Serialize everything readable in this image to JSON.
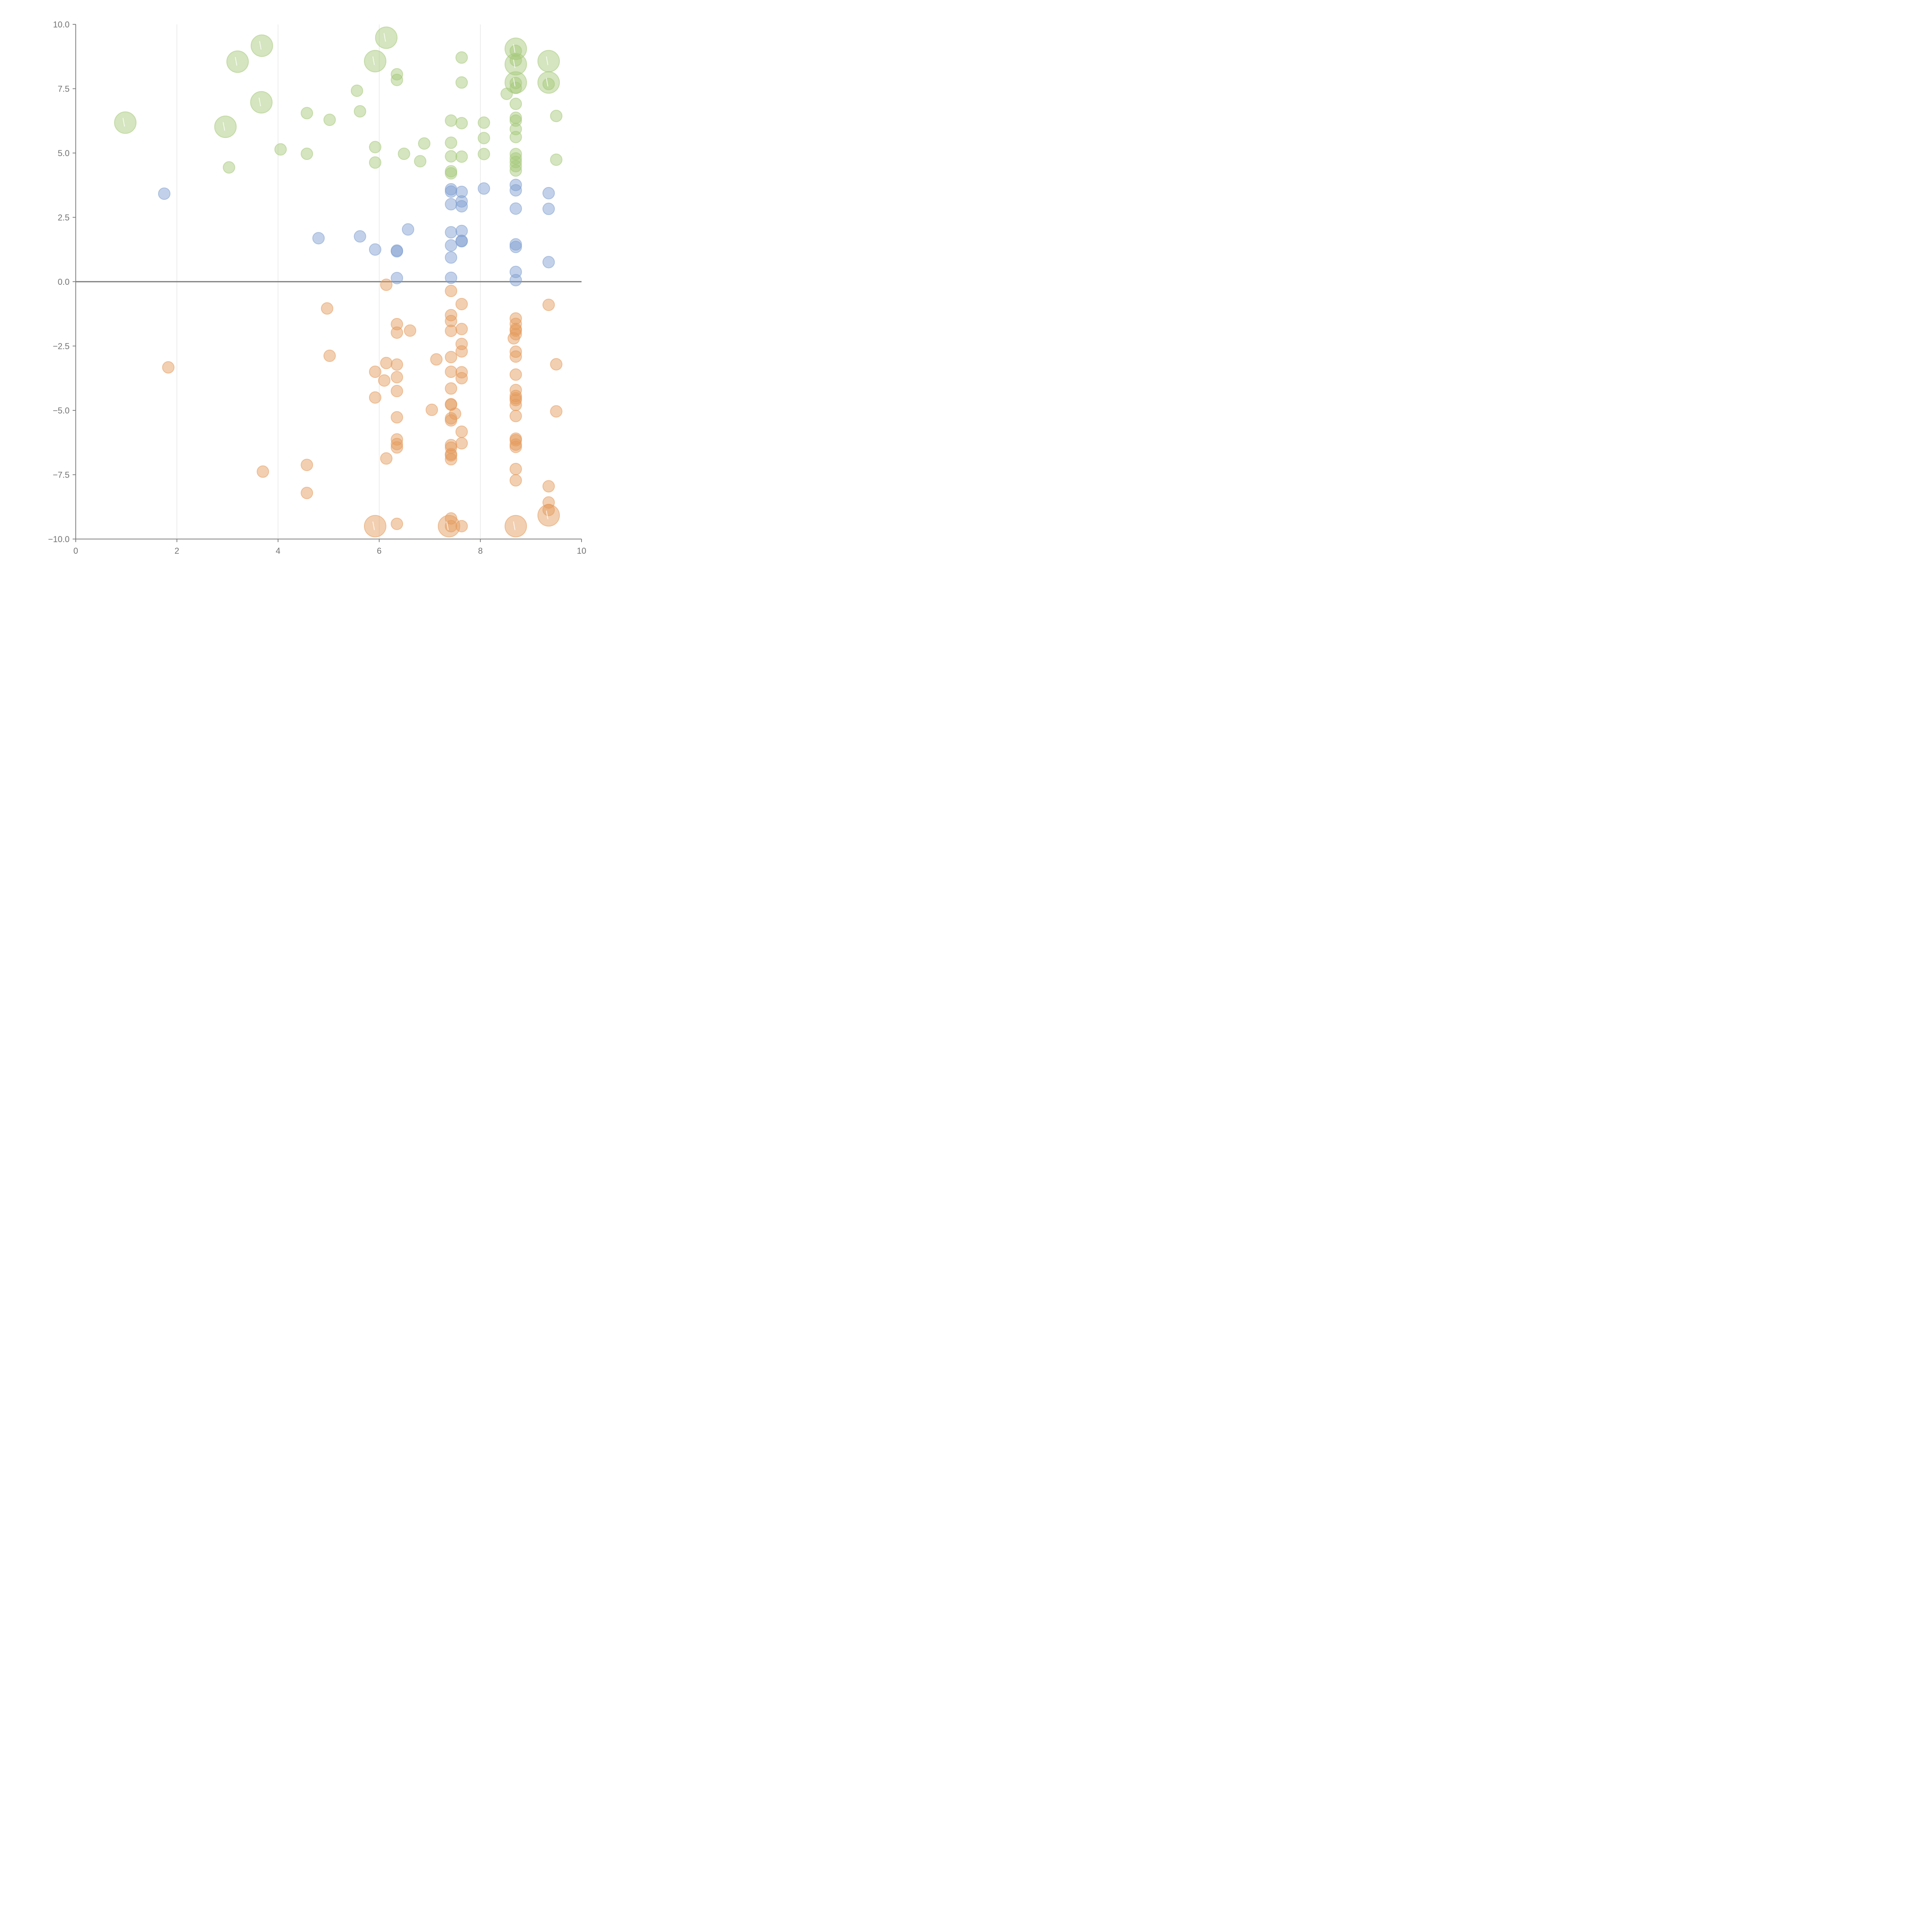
{
  "chart_data": {
    "type": "scatter",
    "title": "",
    "xlabel": "",
    "ylabel": "",
    "xlim": [
      0,
      10
    ],
    "ylim": [
      -10,
      10
    ],
    "x_ticks": [
      "0",
      "2",
      "4",
      "6",
      "8",
      "10"
    ],
    "y_ticks": [
      "−10.0",
      "−7.5",
      "−5.0",
      "−2.5",
      "0.0",
      "2.5",
      "5.0",
      "7.5",
      "10.0"
    ],
    "grid": "vertical only",
    "reference_line_y": 0,
    "colors": {
      "green": "#a6c97a",
      "blue": "#7f9fd0",
      "orange": "#e39a5c"
    },
    "series": [
      {
        "color_key": "green",
        "points": [
          [
            3.68,
            9.17,
            2
          ],
          [
            3.2,
            8.55,
            2
          ],
          [
            3.67,
            6.97,
            2
          ],
          [
            0.98,
            6.18,
            2
          ],
          [
            2.96,
            6.02,
            2
          ],
          [
            6.14,
            9.48,
            2
          ],
          [
            5.92,
            8.57,
            2
          ],
          [
            8.7,
            9.05,
            2
          ],
          [
            8.7,
            8.45,
            2
          ],
          [
            8.7,
            7.74,
            2
          ],
          [
            9.35,
            8.57,
            2
          ],
          [
            9.35,
            7.74,
            2
          ],
          [
            6.35,
            8.06,
            1
          ],
          [
            6.35,
            7.84,
            1
          ],
          [
            7.63,
            8.71,
            1
          ],
          [
            7.63,
            7.74,
            1
          ],
          [
            8.7,
            8.97,
            1
          ],
          [
            8.7,
            8.6,
            1
          ],
          [
            8.7,
            7.72,
            1
          ],
          [
            8.7,
            7.53,
            1
          ],
          [
            8.52,
            7.3,
            1
          ],
          [
            9.35,
            7.68,
            1
          ],
          [
            5.56,
            7.42,
            1
          ],
          [
            4.57,
            6.55,
            1
          ],
          [
            5.02,
            6.29,
            1
          ],
          [
            5.62,
            6.62,
            1
          ],
          [
            7.42,
            6.26,
            1
          ],
          [
            7.63,
            6.16,
            1
          ],
          [
            8.07,
            6.18,
            1
          ],
          [
            8.7,
            6.91,
            1
          ],
          [
            8.7,
            6.37,
            1
          ],
          [
            8.7,
            6.26,
            1
          ],
          [
            8.7,
            5.93,
            1
          ],
          [
            8.7,
            5.62,
            1
          ],
          [
            9.5,
            6.44,
            1
          ],
          [
            4.05,
            5.14,
            1
          ],
          [
            4.57,
            4.97,
            1
          ],
          [
            5.92,
            5.23,
            1
          ],
          [
            5.92,
            4.63,
            1
          ],
          [
            6.49,
            4.97,
            1
          ],
          [
            6.81,
            4.68,
            1
          ],
          [
            6.89,
            5.37,
            1
          ],
          [
            7.42,
            5.4,
            1
          ],
          [
            7.42,
            4.87,
            1
          ],
          [
            7.42,
            4.29,
            1
          ],
          [
            7.42,
            4.21,
            1
          ],
          [
            7.63,
            4.86,
            1
          ],
          [
            8.07,
            5.58,
            1
          ],
          [
            8.07,
            4.96,
            1
          ],
          [
            8.7,
            4.96,
            1
          ],
          [
            8.7,
            4.79,
            1
          ],
          [
            8.7,
            4.65,
            1
          ],
          [
            8.7,
            4.49,
            1
          ],
          [
            8.7,
            4.32,
            1
          ],
          [
            9.5,
            4.74,
            1
          ],
          [
            3.03,
            4.44,
            1
          ]
        ]
      },
      {
        "color_key": "blue",
        "points": [
          [
            1.75,
            3.42,
            1
          ],
          [
            4.8,
            1.69,
            1
          ],
          [
            5.62,
            1.76,
            1
          ],
          [
            5.92,
            1.25,
            1
          ],
          [
            6.35,
            1.21,
            1
          ],
          [
            6.35,
            1.18,
            1
          ],
          [
            6.35,
            0.14,
            1
          ],
          [
            6.57,
            2.03,
            1
          ],
          [
            7.42,
            3.59,
            1
          ],
          [
            7.42,
            3.5,
            1
          ],
          [
            7.42,
            3.01,
            1
          ],
          [
            7.42,
            1.92,
            1
          ],
          [
            7.42,
            1.41,
            1
          ],
          [
            7.42,
            0.94,
            1
          ],
          [
            7.42,
            0.15,
            1
          ],
          [
            7.63,
            3.49,
            1
          ],
          [
            7.63,
            3.12,
            1
          ],
          [
            7.63,
            2.93,
            1
          ],
          [
            7.63,
            1.97,
            1
          ],
          [
            7.63,
            1.59,
            1
          ],
          [
            7.63,
            1.57,
            1
          ],
          [
            8.07,
            3.62,
            1
          ],
          [
            8.7,
            3.76,
            1
          ],
          [
            8.7,
            3.55,
            1
          ],
          [
            8.7,
            2.84,
            1
          ],
          [
            8.7,
            1.45,
            1
          ],
          [
            8.7,
            1.35,
            1
          ],
          [
            8.7,
            0.38,
            1
          ],
          [
            8.7,
            0.06,
            1
          ],
          [
            9.35,
            3.44,
            1
          ],
          [
            9.35,
            2.83,
            1
          ],
          [
            9.35,
            0.76,
            1
          ]
        ]
      },
      {
        "color_key": "orange",
        "points": [
          [
            5.92,
            -9.5,
            2
          ],
          [
            7.38,
            -9.5,
            2
          ],
          [
            8.7,
            -9.5,
            2
          ],
          [
            9.35,
            -9.08,
            2
          ],
          [
            6.14,
            -0.12,
            1
          ],
          [
            4.97,
            -1.04,
            1
          ],
          [
            7.42,
            -0.36,
            1
          ],
          [
            7.63,
            -0.87,
            1
          ],
          [
            9.35,
            -0.9,
            1
          ],
          [
            6.35,
            -1.65,
            1
          ],
          [
            6.35,
            -1.98,
            1
          ],
          [
            6.61,
            -1.9,
            1
          ],
          [
            7.42,
            -1.3,
            1
          ],
          [
            7.42,
            -1.53,
            1
          ],
          [
            7.42,
            -1.91,
            1
          ],
          [
            7.63,
            -1.84,
            1
          ],
          [
            7.63,
            -2.42,
            1
          ],
          [
            7.63,
            -2.71,
            1
          ],
          [
            8.7,
            -1.43,
            1
          ],
          [
            8.7,
            -1.64,
            1
          ],
          [
            8.7,
            -1.84,
            1
          ],
          [
            8.7,
            -1.9,
            1
          ],
          [
            8.7,
            -2.04,
            1
          ],
          [
            8.66,
            -2.2,
            1
          ],
          [
            8.7,
            -2.72,
            1
          ],
          [
            8.7,
            -2.91,
            1
          ],
          [
            9.5,
            -3.21,
            1
          ],
          [
            1.83,
            -3.33,
            1
          ],
          [
            5.02,
            -2.88,
            1
          ],
          [
            5.92,
            -3.5,
            1
          ],
          [
            6.14,
            -3.16,
            1
          ],
          [
            6.1,
            -3.84,
            1
          ],
          [
            6.35,
            -3.22,
            1
          ],
          [
            6.35,
            -3.71,
            1
          ],
          [
            6.35,
            -4.25,
            1
          ],
          [
            7.13,
            -3.02,
            1
          ],
          [
            7.42,
            -2.93,
            1
          ],
          [
            7.42,
            -3.5,
            1
          ],
          [
            7.42,
            -4.15,
            1
          ],
          [
            7.63,
            -3.52,
            1
          ],
          [
            7.63,
            -3.75,
            1
          ],
          [
            8.7,
            -3.61,
            1
          ],
          [
            8.7,
            -4.21,
            1
          ],
          [
            8.7,
            -4.44,
            1
          ],
          [
            8.7,
            -4.53,
            1
          ],
          [
            8.7,
            -4.6,
            1
          ],
          [
            8.7,
            -4.79,
            1
          ],
          [
            5.92,
            -4.5,
            1
          ],
          [
            7.04,
            -4.98,
            1
          ],
          [
            6.35,
            -5.27,
            1
          ],
          [
            7.42,
            -4.76,
            1
          ],
          [
            7.42,
            -4.78,
            1
          ],
          [
            7.5,
            -5.13,
            1
          ],
          [
            7.42,
            -5.31,
            1
          ],
          [
            7.42,
            -5.39,
            1
          ],
          [
            8.7,
            -5.22,
            1
          ],
          [
            9.5,
            -5.04,
            1
          ],
          [
            6.35,
            -6.13,
            1
          ],
          [
            6.35,
            -6.31,
            1
          ],
          [
            6.35,
            -6.44,
            1
          ],
          [
            7.42,
            -6.35,
            1
          ],
          [
            7.42,
            -6.45,
            1
          ],
          [
            7.42,
            -6.7,
            1
          ],
          [
            7.42,
            -6.75,
            1
          ],
          [
            7.42,
            -6.9,
            1
          ],
          [
            7.63,
            -5.83,
            1
          ],
          [
            7.63,
            -6.28,
            1
          ],
          [
            8.7,
            -6.1,
            1
          ],
          [
            8.7,
            -6.16,
            1
          ],
          [
            8.7,
            -6.33,
            1
          ],
          [
            8.7,
            -6.42,
            1
          ],
          [
            6.14,
            -6.87,
            1
          ],
          [
            4.57,
            -7.12,
            1
          ],
          [
            3.7,
            -7.38,
            1
          ],
          [
            8.7,
            -7.28,
            1
          ],
          [
            8.7,
            -7.72,
            1
          ],
          [
            9.35,
            -7.95,
            1
          ],
          [
            4.57,
            -8.21,
            1
          ],
          [
            9.35,
            -8.58,
            1
          ],
          [
            9.35,
            -8.87,
            1
          ],
          [
            6.35,
            -9.41,
            1
          ],
          [
            7.42,
            -9.2,
            1
          ],
          [
            7.42,
            -9.5,
            1
          ],
          [
            7.63,
            -9.5,
            1
          ]
        ]
      }
    ]
  }
}
